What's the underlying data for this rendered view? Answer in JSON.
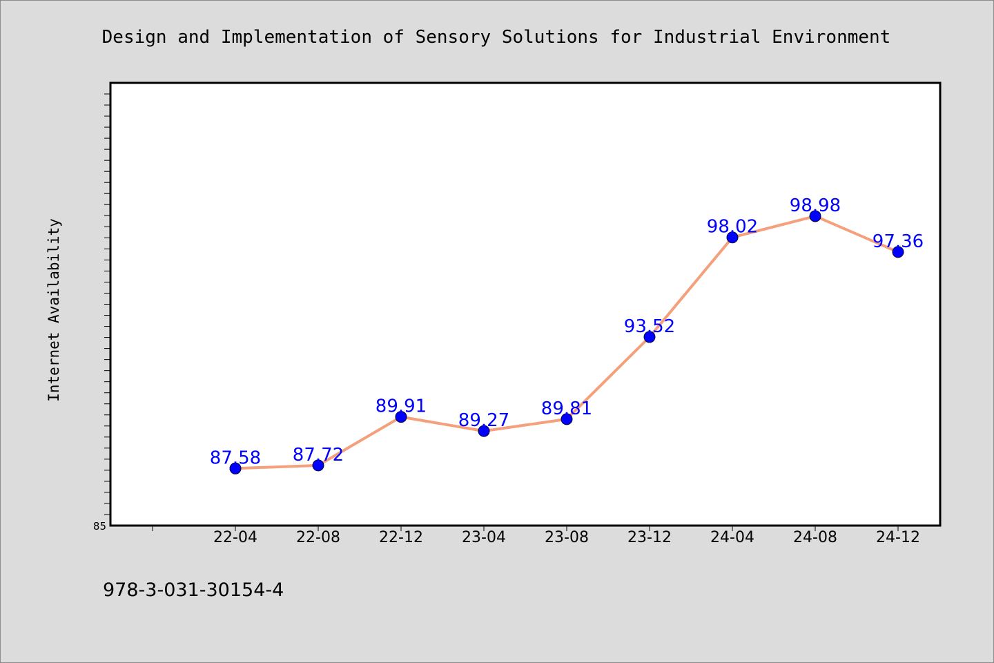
{
  "chart_data": {
    "type": "line",
    "title": "Design and Implementation of Sensory Solutions for Industrial Environment",
    "xlabel": "",
    "ylabel": "Internet Availability",
    "categories": [
      "22-04",
      "22-08",
      "22-12",
      "23-04",
      "23-08",
      "23-12",
      "24-04",
      "24-08",
      "24-12"
    ],
    "series": [
      {
        "values": [
          87.58,
          87.72,
          89.91,
          89.27,
          89.81,
          93.52,
          98.02,
          98.98,
          97.36
        ]
      }
    ],
    "point_labels": [
      "87.58",
      "87.72",
      "89.91",
      "89.27",
      "89.81",
      "93.52",
      "98.02",
      "98.98",
      "97.36"
    ],
    "y_tick_labels": [
      "85"
    ],
    "ylim": [
      85,
      105
    ],
    "grid": false,
    "legend": "none"
  },
  "footer": {
    "isbn": "978-3-031-30154-4"
  },
  "colors": {
    "background": "#dcdcdc",
    "plot_background": "#ffffff",
    "line": "#f4a07c",
    "marker": "#0000ff",
    "point_label": "#0000ff"
  }
}
